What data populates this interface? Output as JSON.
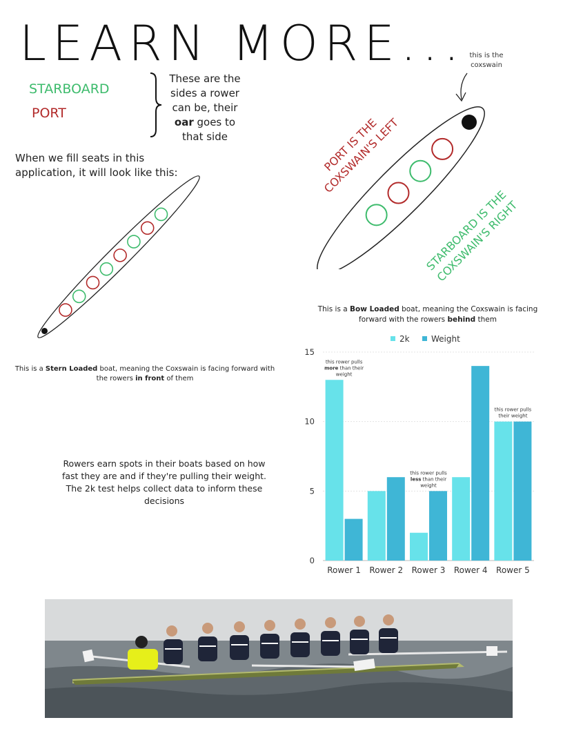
{
  "title": "LEARN MORE...",
  "sides": {
    "starboard": "STARBOARD",
    "port": "PORT",
    "desc_pre": "These are the sides a rower can be, their ",
    "desc_bold": "oar",
    "desc_post": " goes to that side"
  },
  "fill_text": "When we fill seats in this application, it will look like this:",
  "coxswain_label": "this is the coxswain",
  "port_rotated": "PORT IS THE COXSWAIN'S LEFT",
  "starboard_rotated": "STARBOARD IS THE COXSWAIN'S RIGHT",
  "stern_text": {
    "pre": "This is a ",
    "bold1": "Stern Loaded",
    "mid": " boat, meaning the Coxswain is facing forward with the rowers ",
    "bold2": "in front",
    "post": " of them"
  },
  "bow_text": {
    "pre": "This is a ",
    "bold1": "Bow Loaded",
    "mid": " boat, meaning the Coxswain is facing forward with the rowers ",
    "bold2": "behind",
    "post": " them"
  },
  "earn_text": "Rowers earn spots in their boats based on how fast they are and if they're pulling their weight. The 2k test helps collect data to inform these decisions",
  "colors": {
    "starboard": "#3dbb6c",
    "port": "#b22a2a",
    "series_2k": "#67e2ea",
    "series_weight": "#3fb6d6"
  },
  "chart_data": {
    "type": "bar",
    "categories": [
      "Rower 1",
      "Rower 2",
      "Rower 3",
      "Rower 4",
      "Rower 5"
    ],
    "series": [
      {
        "name": "2k",
        "values": [
          13,
          5,
          2,
          6,
          10
        ]
      },
      {
        "name": "Weight",
        "values": [
          3,
          6,
          5,
          14,
          10
        ]
      }
    ],
    "ylim": [
      0,
      15
    ],
    "yticks": [
      0,
      5,
      10,
      15
    ],
    "legend": "top",
    "grid": true,
    "annotations": [
      {
        "category": "Rower 1",
        "pre": "this rower pulls ",
        "bold": "more",
        "post": " than their weight"
      },
      {
        "category": "Rower 3",
        "pre": "this rower pulls ",
        "bold": "less",
        "post": " than their weight"
      },
      {
        "category": "Rower 5",
        "pre": "this rower pulls their weight",
        "bold": "",
        "post": ""
      }
    ]
  }
}
